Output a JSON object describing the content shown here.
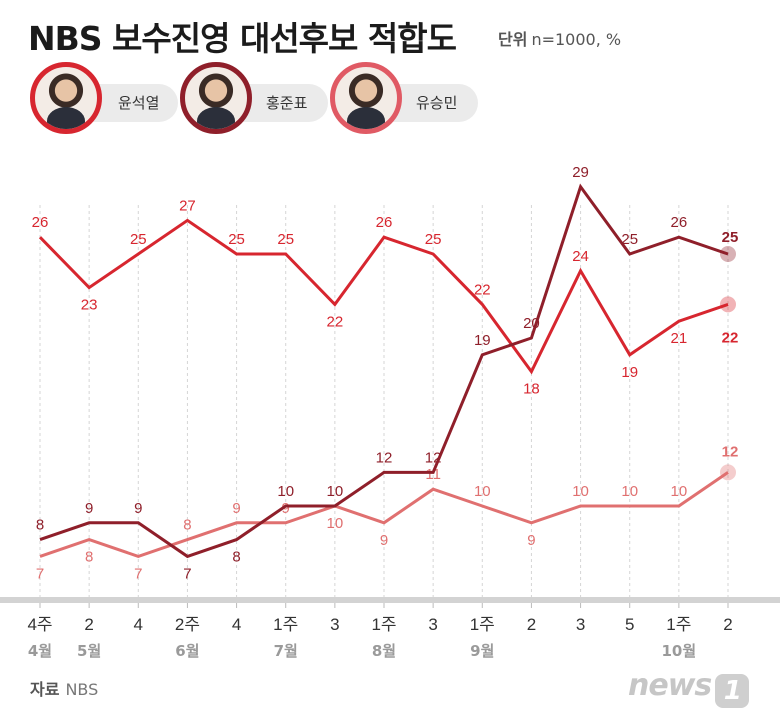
{
  "header": {
    "title": "NBS 보수진영 대선후보 적합도",
    "unit_label": "단위",
    "unit_value": "n=1000, %"
  },
  "legend": [
    {
      "name": "윤석열",
      "color": "#d7262f"
    },
    {
      "name": "홍준표",
      "color": "#8f1f2a"
    },
    {
      "name": "유승민",
      "color": "#e05a64"
    }
  ],
  "footer": {
    "source_label": "자료",
    "source_value": "NBS",
    "logo_text": "news",
    "logo_mark": "1"
  },
  "chart_data": {
    "type": "line",
    "title": "NBS 보수진영 대선후보 적합도",
    "unit": "n=1000, %",
    "categories": [
      "4주",
      "2",
      "4",
      "2주",
      "4",
      "1주",
      "3",
      "1주",
      "3",
      "1주",
      "2",
      "3",
      "5",
      "1주",
      "2"
    ],
    "month_labels": [
      "4월",
      "5월",
      "",
      "6월",
      "",
      "7월",
      "",
      "8월",
      "",
      "9월",
      "",
      "",
      "",
      "10월",
      ""
    ],
    "ylim": [
      5,
      30
    ],
    "series": [
      {
        "name": "윤석열",
        "color": "#d7262f",
        "values": [
          26,
          23,
          25,
          27,
          25,
          25,
          22,
          26,
          25,
          22,
          18,
          24,
          19,
          21,
          22
        ]
      },
      {
        "name": "홍준표",
        "color": "#8f1f2a",
        "values": [
          8,
          9,
          9,
          7,
          8,
          10,
          10,
          12,
          12,
          19,
          20,
          29,
          25,
          26,
          25
        ]
      },
      {
        "name": "유승민",
        "color": "#e07070",
        "values": [
          7,
          8,
          7,
          8,
          9,
          9,
          10,
          9,
          11,
          10,
          9,
          10,
          10,
          10,
          12
        ]
      }
    ]
  }
}
